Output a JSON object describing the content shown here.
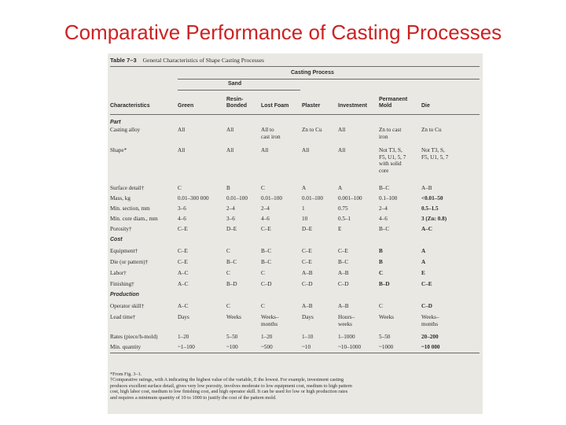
{
  "slide": {
    "title": "Comparative Performance of Casting Processes"
  },
  "table": {
    "caption_label": "Table 7–3",
    "caption_text": "General Characteristics of Shape Casting Processes",
    "group_header": "Casting Process",
    "sand_header": "Sand",
    "columns": [
      "Characteristics",
      "Green",
      "Resin-\nBonded",
      "Lost Foam",
      "Plaster",
      "Investment",
      "Permanent\nMold",
      "Die"
    ],
    "sections": {
      "part": "Part",
      "cost": "Cost",
      "production": "Production"
    },
    "rows": {
      "casting_alloy": [
        "Casting alloy",
        "All",
        "All",
        "All to\ncast iron",
        "Zn to Cu",
        "All",
        "Zn to cast\niron",
        "Zn to Cu"
      ],
      "shape": [
        "Shape*",
        "All",
        "All",
        "All",
        "All",
        "All",
        "Not T3, S,\nF5, U1, 5, 7\nwith solid\ncore",
        "Not T3, S,\nF5, U1, 5, 7"
      ],
      "surface_detail": [
        "Surface detail†",
        "C",
        "B",
        "C",
        "A",
        "A",
        "B–C",
        "A–B"
      ],
      "mass": [
        "Mass, kg",
        "0.01–300 000",
        "0.01–100",
        "0.01–100",
        "0.01–100",
        "0.001–100",
        "0.1–100",
        "<0.01–50"
      ],
      "min_section": [
        "Min. section, mm",
        "3–6",
        "2–4",
        "2–4",
        "1",
        "0.75",
        "2–4",
        "0.5–1.5"
      ],
      "min_core": [
        "Min. core diam., mm",
        "4–6",
        "3–6",
        "4–6",
        "10",
        "0.5–1",
        "4–6",
        "3 (Zn: 0.8)"
      ],
      "porosity": [
        "Porosity†",
        "C–E",
        "D–E",
        "C–E",
        "D–E",
        "E",
        "B–C",
        "A–C"
      ],
      "equipment": [
        "Equipment†",
        "C–E",
        "C",
        "B–C",
        "C–E",
        "C–E",
        "B",
        "A"
      ],
      "die": [
        "Die (or pattern)†",
        "C–E",
        "B–C",
        "B–C",
        "C–E",
        "B–C",
        "B",
        "A"
      ],
      "labor": [
        "Labor†",
        "A–C",
        "C",
        "C",
        "A–B",
        "A–B",
        "C",
        "E"
      ],
      "finishing": [
        "Finishing†",
        "A–C",
        "B–D",
        "C–D",
        "C–D",
        "C–D",
        "B–D",
        "C–E"
      ],
      "operator_skill": [
        "Operator skill†",
        "A–C",
        "C",
        "C",
        "A–B",
        "A–B",
        "C",
        "C–D"
      ],
      "lead_time": [
        "Lead time†",
        "Days",
        "Weeks",
        "Weeks–\nmonths",
        "Days",
        "Hours–\nweeks",
        "Weeks",
        "Weeks–\nmonths"
      ],
      "rates": [
        "Rates (piece/h-mold)",
        "1–20",
        "5–50",
        "1–20",
        "1–10",
        "1–1000",
        "5–50",
        "20–200"
      ],
      "min_quantity": [
        "Min. quantity",
        "~1–100",
        "~100",
        "~500",
        "~10",
        "~10–1000",
        "~1000",
        "~10 000"
      ]
    },
    "footnotes": [
      "*From Fig. 3–1.",
      "†Comparative ratings, with A indicating the highest value of the variable, E the lowest. For example, investment casting",
      "produces excellent surface detail, gives very low porosity, involves moderate to low equipment cost, medium to high pattern",
      "cost, high labor cost, medium to low finishing cost, and high operator skill. It can be used for low or high production rates",
      "and requires a minimum quantity of 10 to 1000 to justify the cost of the pattern mold."
    ]
  }
}
